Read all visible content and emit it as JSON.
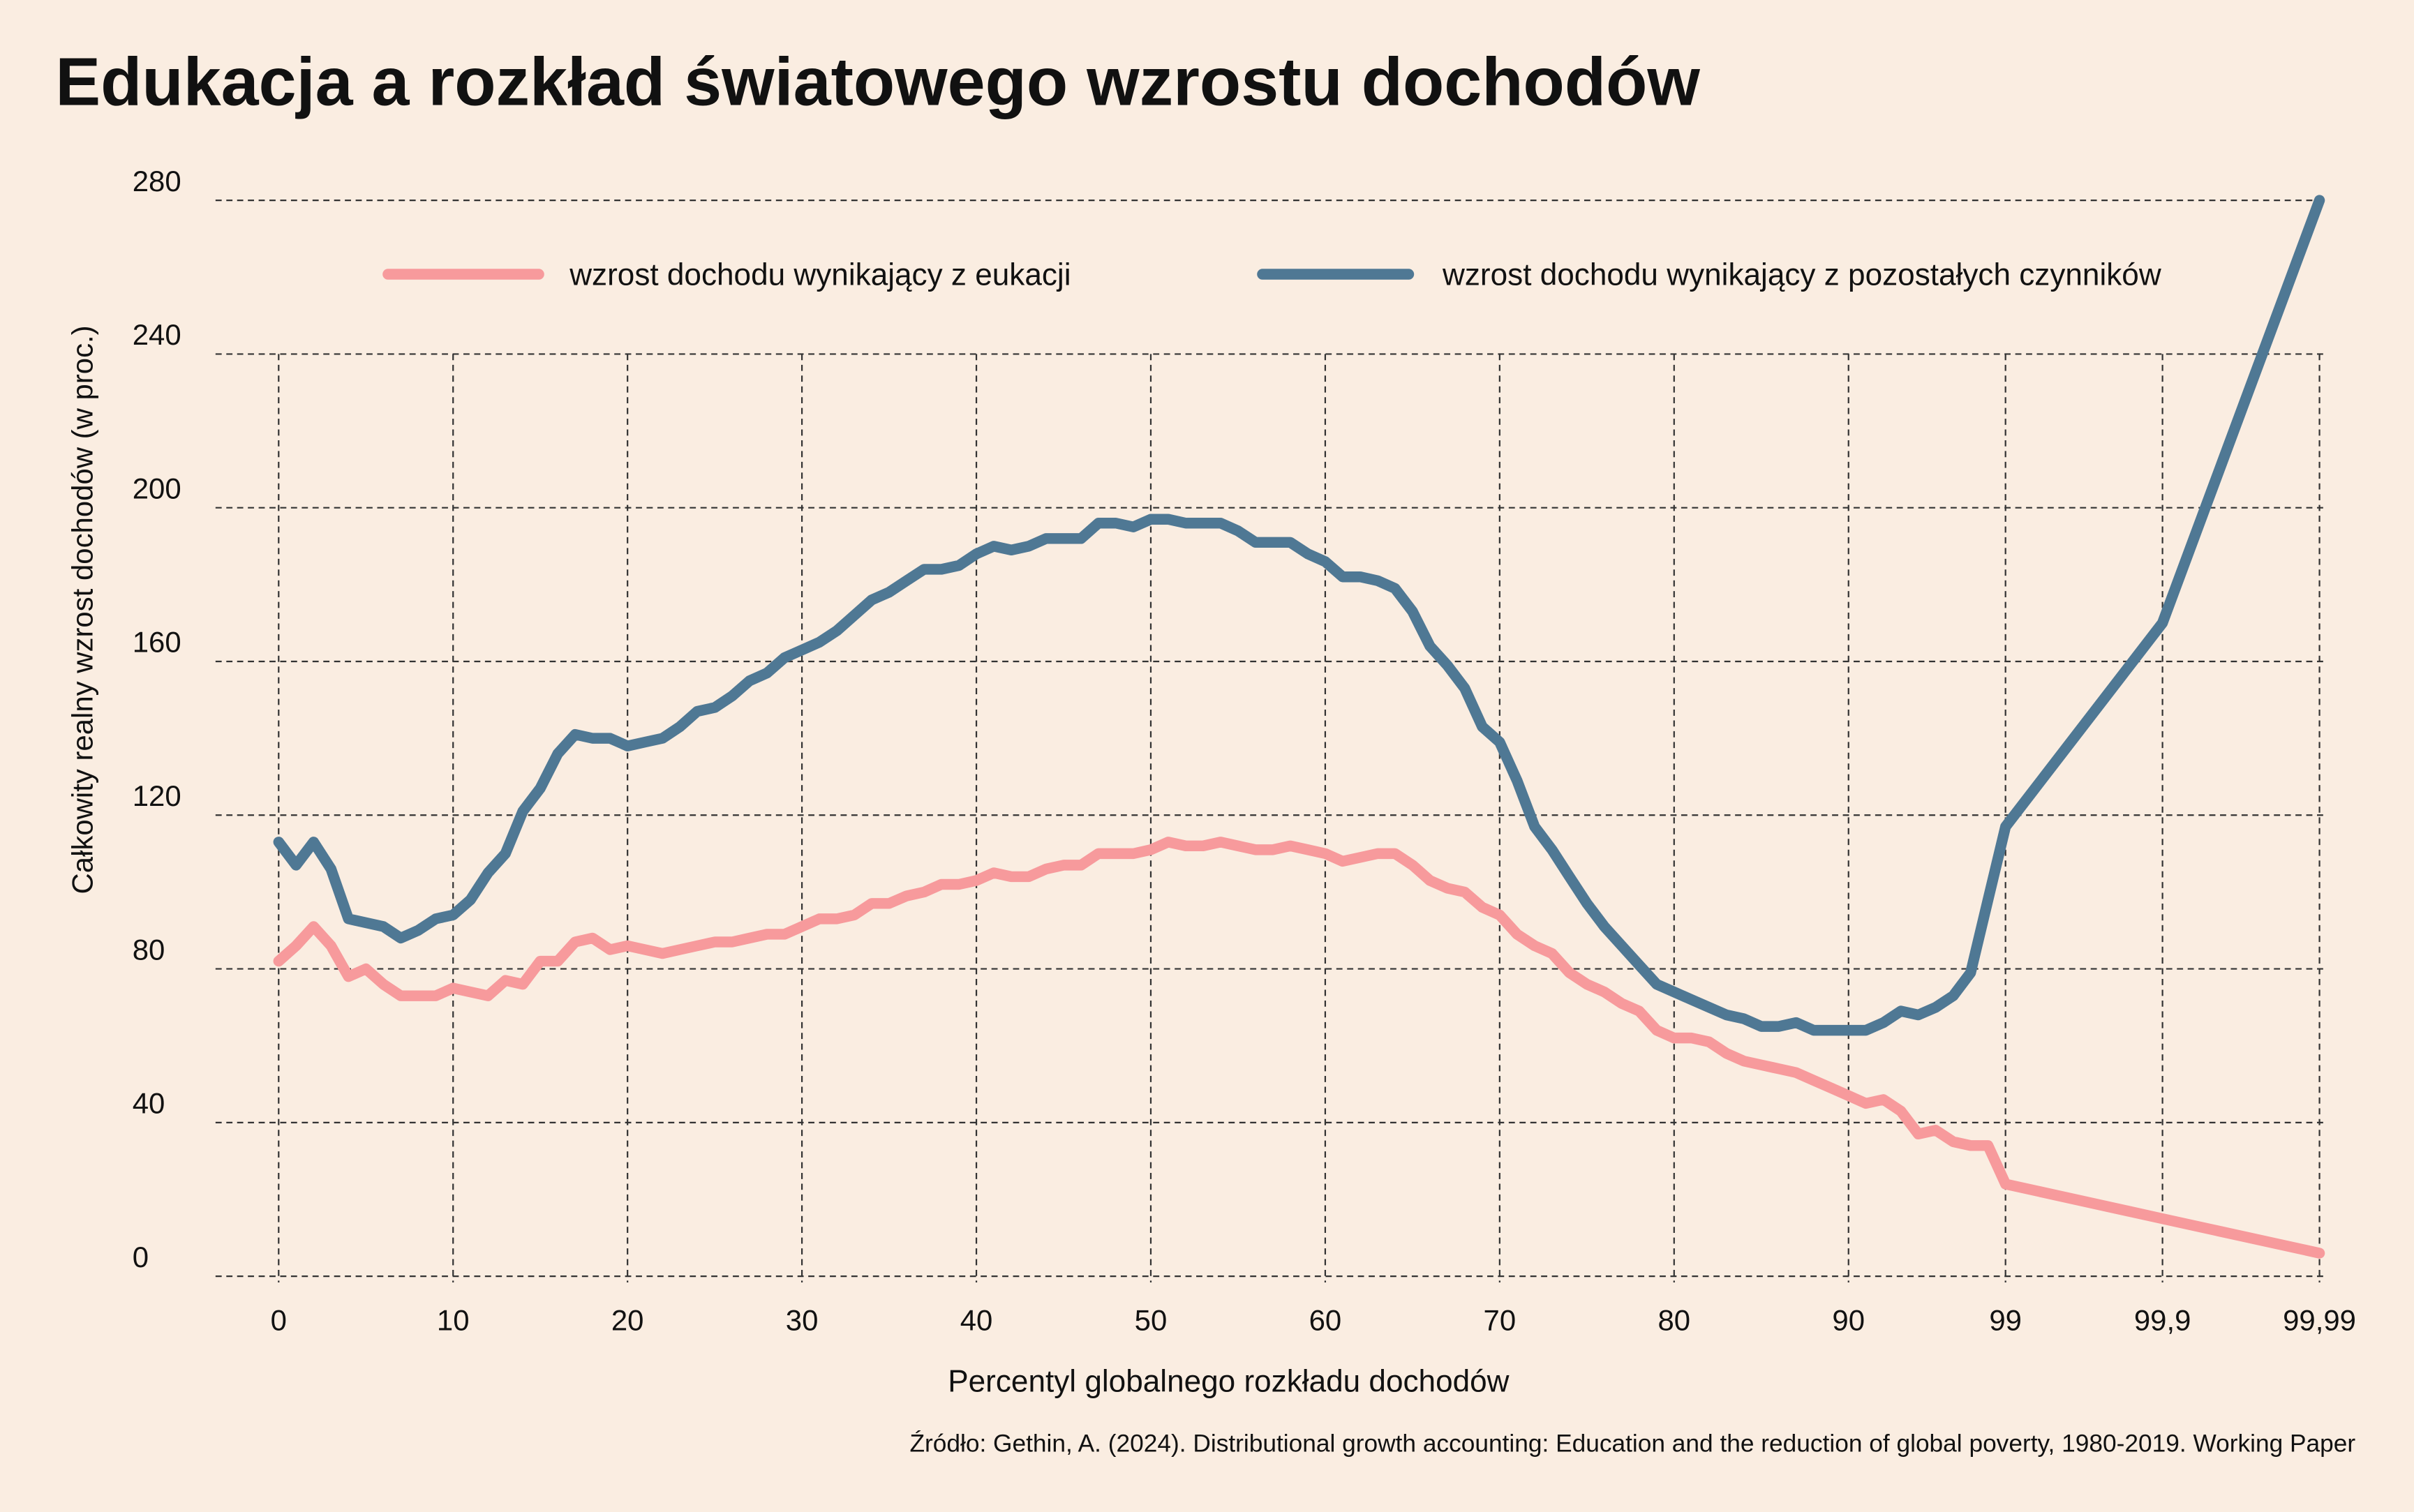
{
  "chart_data": {
    "type": "line",
    "title": "Edukacja a rozkład światowego wzrostu dochodów",
    "x_label": "Percentyl globalnego rozkładu dochodów",
    "y_label": "Całkowity realny wzrost dochodów (w proc.)",
    "source": "Źródło: Gethin, A. (2024). Distributional growth accounting: Education and the reduction of global poverty, 1980-2019. Working Paper",
    "categories": [
      "0",
      null,
      null,
      null,
      null,
      null,
      null,
      null,
      null,
      null,
      "10",
      null,
      null,
      null,
      null,
      null,
      null,
      null,
      null,
      null,
      "20",
      null,
      null,
      null,
      null,
      null,
      null,
      null,
      null,
      null,
      "30",
      null,
      null,
      null,
      null,
      null,
      null,
      null,
      null,
      null,
      "40",
      null,
      null,
      null,
      null,
      null,
      null,
      null,
      null,
      null,
      "50",
      null,
      null,
      null,
      null,
      null,
      null,
      null,
      null,
      null,
      "60",
      null,
      null,
      null,
      null,
      null,
      null,
      null,
      null,
      null,
      "70",
      null,
      null,
      null,
      null,
      null,
      null,
      null,
      null,
      null,
      "80",
      null,
      null,
      null,
      null,
      null,
      null,
      null,
      null,
      null,
      "90",
      null,
      null,
      null,
      null,
      null,
      null,
      null,
      null,
      "99",
      "99,9",
      "99,99"
    ],
    "series": [
      {
        "name": "wzrost dochodu wynikający z eukacji",
        "color": "#f79a9c",
        "values": [
          82,
          86,
          91,
          86,
          78,
          80,
          76,
          73,
          73,
          73,
          75,
          74,
          73,
          77,
          76,
          82,
          82,
          87,
          88,
          85,
          86,
          85,
          84,
          85,
          86,
          87,
          87,
          88,
          89,
          89,
          91,
          93,
          93,
          94,
          97,
          97,
          99,
          100,
          102,
          102,
          103,
          105,
          104,
          104,
          106,
          107,
          107,
          110,
          110,
          110,
          111,
          113,
          112,
          112,
          113,
          112,
          111,
          111,
          112,
          111,
          110,
          108,
          109,
          110,
          110,
          107,
          103,
          101,
          100,
          96,
          94,
          89,
          86,
          84,
          79,
          76,
          74,
          71,
          69,
          64,
          62,
          62,
          61,
          58,
          56,
          55,
          54,
          53,
          51,
          49,
          47,
          45,
          46,
          43,
          37,
          38,
          35,
          34,
          34,
          24,
          15,
          6
        ]
      },
      {
        "name": "wzrost dochodu wynikający z pozostałych czynników",
        "color": "#4f7894",
        "values": [
          113,
          107,
          113,
          106,
          93,
          92,
          91,
          88,
          90,
          93,
          94,
          98,
          105,
          110,
          121,
          127,
          136,
          141,
          140,
          140,
          138,
          139,
          140,
          143,
          147,
          148,
          151,
          155,
          157,
          161,
          163,
          165,
          168,
          172,
          176,
          178,
          181,
          184,
          184,
          185,
          188,
          190,
          189,
          190,
          192,
          192,
          192,
          196,
          196,
          195,
          197,
          197,
          196,
          196,
          196,
          194,
          191,
          191,
          191,
          188,
          186,
          182,
          182,
          181,
          179,
          173,
          164,
          159,
          153,
          143,
          139,
          129,
          117,
          111,
          104,
          97,
          91,
          86,
          81,
          76,
          74,
          72,
          70,
          68,
          67,
          65,
          65,
          66,
          64,
          64,
          64,
          64,
          66,
          69,
          68,
          70,
          73,
          79,
          98,
          117,
          170,
          280
        ]
      }
    ],
    "ylim": [
      0,
      280
    ],
    "yticks": [
      0,
      40,
      80,
      120,
      160,
      200,
      240,
      280
    ],
    "grid": true
  }
}
